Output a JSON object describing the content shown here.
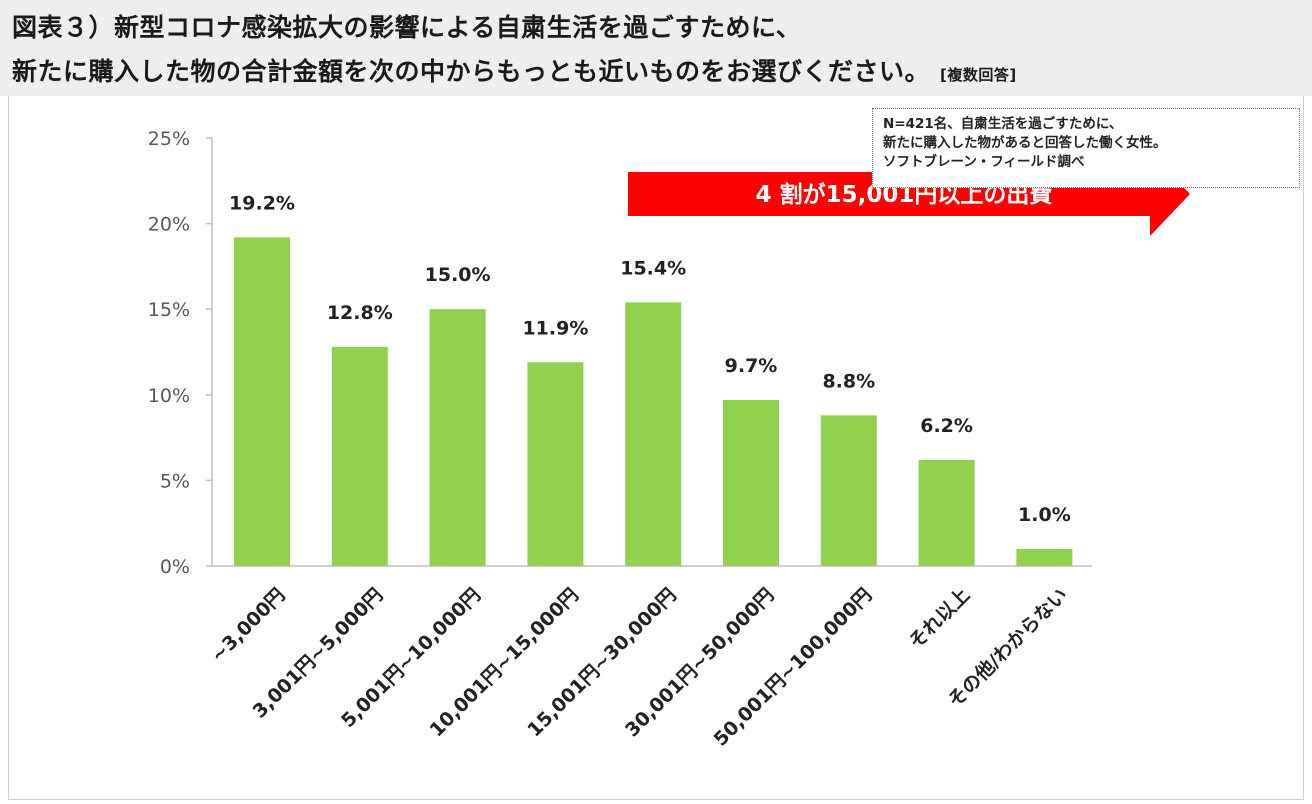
{
  "title": {
    "line1": "図表３）新型コロナ感染拡大の影響による自粛生活を過ごすために、",
    "line2": "新たに購入した物の合計金額を次の中からもっとも近いものをお選びください。",
    "note": "[複数回答]"
  },
  "source_note": {
    "line1": "N=421名、自粛生活を過ごすために、",
    "line2": "新たに購入した物があると回答した働く女性。",
    "line3": "ソフトブレーン・フィールド調べ"
  },
  "annotation": {
    "text": "4 割が15,001円以上の出費",
    "color": "#ff0000"
  },
  "colors": {
    "bar": "#92d050",
    "axis": "#bfbfbf",
    "tick_text": "#595959",
    "label_text": "#222222"
  },
  "chart_data": {
    "type": "bar",
    "title": "",
    "xlabel": "",
    "ylabel": "",
    "categories": [
      "~3,000円",
      "3,001円~5,000円",
      "5,001円~10,000円",
      "10,001円~15,000円",
      "15,001円~30,000円",
      "30,001円~50,000円",
      "50,001円~100,000円",
      "それ以上",
      "その他/わからない"
    ],
    "values": [
      19.2,
      12.8,
      15.0,
      11.9,
      15.4,
      9.7,
      8.8,
      6.2,
      1.0
    ],
    "value_labels": [
      "19.2%",
      "12.8%",
      "15.0%",
      "11.9%",
      "15.4%",
      "9.7%",
      "8.8%",
      "6.2%",
      "1.0%"
    ],
    "ylim": [
      0,
      25
    ],
    "y_ticks": [
      0,
      5,
      10,
      15,
      20,
      25
    ],
    "y_tick_labels": [
      "0%",
      "5%",
      "10%",
      "15%",
      "20%",
      "25%"
    ],
    "grid": false,
    "legend": "none"
  }
}
